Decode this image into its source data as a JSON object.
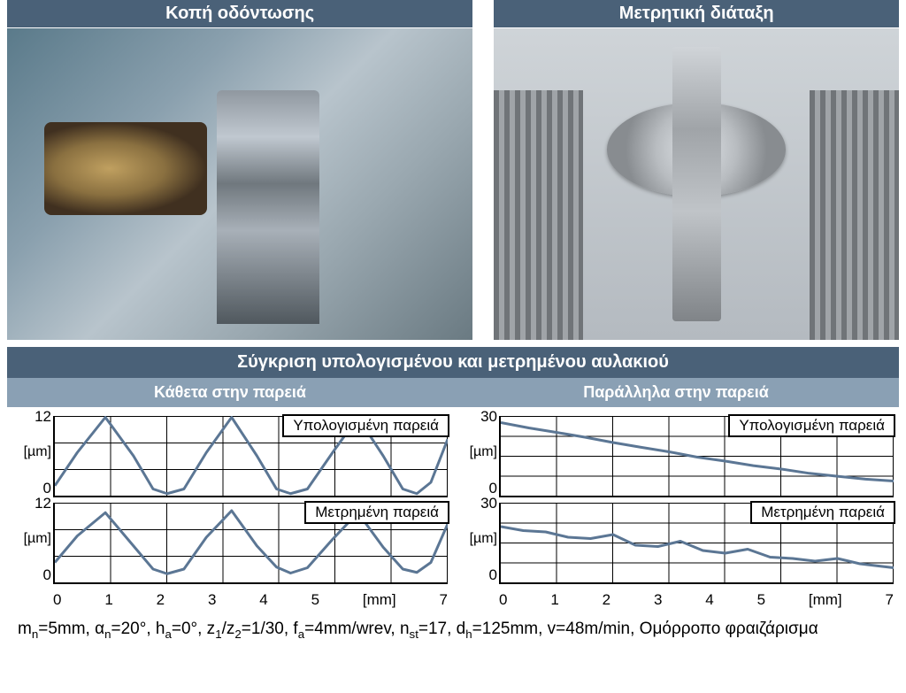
{
  "colors": {
    "header_bg": "#4a6178",
    "subhead_bg": "#8aa0b4",
    "header_text": "#ffffff",
    "line_color": "#5b7694",
    "grid_color": "#000000",
    "background": "#ffffff"
  },
  "panels": {
    "left_title": "Κοπή οδόντωσης",
    "right_title": "Μετρητική διάταξη"
  },
  "compare": {
    "title": "Σύγκριση υπολογισμένου και μετρημένου αυλακιού",
    "left_sub": "Κάθετα στην παρειά",
    "right_sub": "Παράλληλα στην παρειά"
  },
  "chart_labels": {
    "computed": "Υπολογισμένη παρειά",
    "measured": "Μετρημένη παρειά"
  },
  "left_charts": {
    "y_unit": "[µm]",
    "x_unit": "[mm]",
    "ymax_label": "12",
    "ymin_label": "0",
    "xticks": [
      "0",
      "1",
      "2",
      "3",
      "4",
      "5",
      "[mm]",
      "7"
    ],
    "line_width": 3,
    "computed": {
      "type": "line",
      "xlim": [
        0,
        7
      ],
      "ylim": [
        0,
        12
      ],
      "gridlines_x": 7,
      "gridlines_y": 3,
      "points": [
        [
          0.0,
          1.5
        ],
        [
          0.4,
          6.5
        ],
        [
          0.9,
          11.8
        ],
        [
          1.4,
          6.0
        ],
        [
          1.75,
          1.0
        ],
        [
          2.0,
          0.3
        ],
        [
          2.3,
          1.0
        ],
        [
          2.7,
          6.5
        ],
        [
          3.15,
          11.8
        ],
        [
          3.6,
          6.0
        ],
        [
          3.95,
          1.0
        ],
        [
          4.2,
          0.3
        ],
        [
          4.5,
          1.0
        ],
        [
          4.95,
          6.5
        ],
        [
          5.4,
          11.8
        ],
        [
          5.85,
          6.0
        ],
        [
          6.2,
          1.0
        ],
        [
          6.45,
          0.3
        ],
        [
          6.7,
          2.0
        ],
        [
          7.0,
          8.5
        ]
      ]
    },
    "measured": {
      "type": "line",
      "xlim": [
        0,
        7
      ],
      "ylim": [
        0,
        12
      ],
      "gridlines_x": 7,
      "gridlines_y": 3,
      "points": [
        [
          0.0,
          3.0
        ],
        [
          0.4,
          7.0
        ],
        [
          0.9,
          10.5
        ],
        [
          1.4,
          5.5
        ],
        [
          1.75,
          2.0
        ],
        [
          2.0,
          1.3
        ],
        [
          2.3,
          2.0
        ],
        [
          2.7,
          6.8
        ],
        [
          3.15,
          10.8
        ],
        [
          3.6,
          5.5
        ],
        [
          3.95,
          2.3
        ],
        [
          4.2,
          1.4
        ],
        [
          4.5,
          2.2
        ],
        [
          4.95,
          6.5
        ],
        [
          5.4,
          10.5
        ],
        [
          5.85,
          5.3
        ],
        [
          6.2,
          2.0
        ],
        [
          6.45,
          1.5
        ],
        [
          6.7,
          3.0
        ],
        [
          7.0,
          8.8
        ]
      ]
    }
  },
  "right_charts": {
    "y_unit": "[µm]",
    "x_unit": "[mm]",
    "ymax_label": "30",
    "ymin_label": "0",
    "xticks": [
      "0",
      "1",
      "2",
      "3",
      "4",
      "5",
      "[mm]",
      "7"
    ],
    "line_width": 3,
    "computed": {
      "type": "line",
      "xlim": [
        0,
        7
      ],
      "ylim": [
        0,
        30
      ],
      "gridlines_x": 7,
      "gridlines_y": 4,
      "points": [
        [
          0.0,
          27.5
        ],
        [
          0.5,
          25.5
        ],
        [
          1.0,
          23.8
        ],
        [
          1.5,
          22.0
        ],
        [
          2.0,
          20.0
        ],
        [
          2.5,
          18.2
        ],
        [
          3.0,
          16.5
        ],
        [
          3.5,
          14.5
        ],
        [
          4.0,
          13.0
        ],
        [
          4.5,
          11.3
        ],
        [
          5.0,
          10.0
        ],
        [
          5.5,
          8.4
        ],
        [
          6.0,
          7.3
        ],
        [
          6.5,
          6.2
        ],
        [
          7.0,
          5.5
        ]
      ]
    },
    "measured": {
      "type": "line",
      "xlim": [
        0,
        7
      ],
      "ylim": [
        0,
        30
      ],
      "gridlines_x": 7,
      "gridlines_y": 4,
      "points": [
        [
          0.0,
          21.0
        ],
        [
          0.4,
          19.5
        ],
        [
          0.8,
          19.0
        ],
        [
          1.2,
          17.0
        ],
        [
          1.6,
          16.5
        ],
        [
          2.0,
          18.0
        ],
        [
          2.4,
          14.0
        ],
        [
          2.8,
          13.5
        ],
        [
          3.2,
          15.5
        ],
        [
          3.6,
          12.0
        ],
        [
          4.0,
          11.0
        ],
        [
          4.4,
          12.5
        ],
        [
          4.8,
          9.5
        ],
        [
          5.2,
          9.0
        ],
        [
          5.6,
          8.0
        ],
        [
          6.0,
          9.0
        ],
        [
          6.4,
          7.0
        ],
        [
          6.8,
          6.0
        ],
        [
          7.0,
          5.5
        ]
      ]
    }
  },
  "params_line1": "mₙ=5mm, αₙ=20°, hₐ=0°, z₁/z₂=1/30, fₐ=4mm/wrev, nₛₜ=17, d_h=125mm, v=48m/min, Ομόρροπο",
  "params_line2": "φραιζάρισμα"
}
